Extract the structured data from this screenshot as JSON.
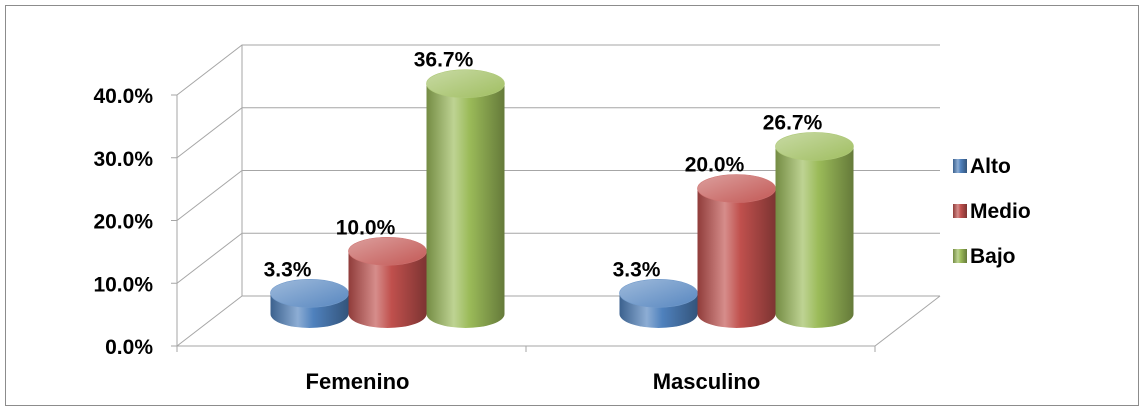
{
  "chart_data": {
    "type": "bar",
    "style": "3d-cylinder",
    "categories": [
      "Femenino",
      "Masculino"
    ],
    "series": [
      {
        "name": "Alto",
        "values": [
          3.3,
          3.3
        ],
        "labels": [
          "3.3%",
          "3.3%"
        ],
        "color": "#4f81bd"
      },
      {
        "name": "Medio",
        "values": [
          10.0,
          20.0
        ],
        "labels": [
          "10.0%",
          "20.0%"
        ],
        "color": "#c0504d"
      },
      {
        "name": "Bajo",
        "values": [
          36.7,
          26.7
        ],
        "labels": [
          "36.7%",
          "26.7%"
        ],
        "color": "#9bbb59"
      }
    ],
    "yticks": [
      "0.0%",
      "10.0%",
      "20.0%",
      "30.0%",
      "40.0%"
    ],
    "ylim": [
      0,
      40
    ],
    "grid": true,
    "legend": "right"
  }
}
